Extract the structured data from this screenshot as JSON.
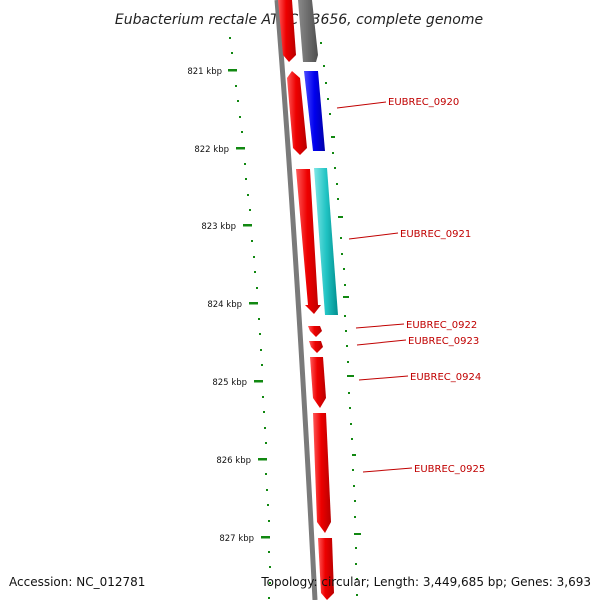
{
  "title": "Eubacterium rectale ATCC 33656, complete genome",
  "footer": {
    "accession": "Accession: NC_012781",
    "topology": "Topology: circular; Length: 3,449,685 bp; Genes: 3,693"
  },
  "ruler": {
    "labels": [
      "821 kbp",
      "822 kbp",
      "823 kbp",
      "824 kbp",
      "825 kbp",
      "826 kbp",
      "827 kbp"
    ]
  },
  "gene_labels": [
    "EUBREC_0920",
    "EUBREC_0921",
    "EUBREC_0922",
    "EUBREC_0923",
    "EUBREC_0924",
    "EUBREC_0925"
  ],
  "colors": {
    "backbone": "#7a7a7a",
    "gene_red": "#ee0000",
    "gene_blue": "#0000ee",
    "gene_cyan": "#00bbbb",
    "gene_gray": "#6a6a6a",
    "tick": "#118811",
    "label_text": "#c00000"
  }
}
